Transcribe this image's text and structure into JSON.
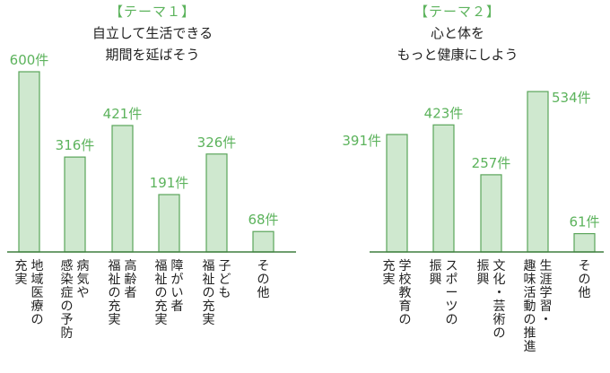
{
  "chart_data": [
    {
      "type": "bar",
      "theme": "【テーマ１】",
      "title_lines": [
        "自立して生活できる",
        "期間を延ばそう"
      ],
      "unit": "件",
      "categories": [
        [
          "地域医療の",
          "充実"
        ],
        [
          "病気や",
          "感染症の予防"
        ],
        [
          "高齢者",
          "福祉の充実"
        ],
        [
          "障がい者",
          "福祉の充実"
        ],
        [
          "子ども",
          "福祉の充実"
        ],
        [
          "その他"
        ]
      ],
      "values": [
        600,
        316,
        421,
        191,
        326,
        68
      ],
      "value_labels": [
        "600件",
        "316件",
        "421件",
        "191件",
        "326件",
        "68件"
      ],
      "bar_color": "#cfe8cf",
      "label_color": "#5cb35c"
    },
    {
      "type": "bar",
      "theme": "【テーマ２】",
      "title_lines": [
        "心と体を",
        "もっと健康にしよう"
      ],
      "unit": "件",
      "categories": [
        [
          "学校教育の",
          "充実"
        ],
        [
          "スポーツの",
          "振興"
        ],
        [
          "文化・芸術の",
          "振興"
        ],
        [
          "生涯学習・",
          "趣味活動の推進"
        ],
        [
          "その他"
        ]
      ],
      "values": [
        391,
        423,
        257,
        534,
        61
      ],
      "value_labels": [
        "391件",
        "423件",
        "257件",
        "534件",
        "61件"
      ],
      "bar_color": "#cfe8cf",
      "label_color": "#5cb35c"
    }
  ]
}
